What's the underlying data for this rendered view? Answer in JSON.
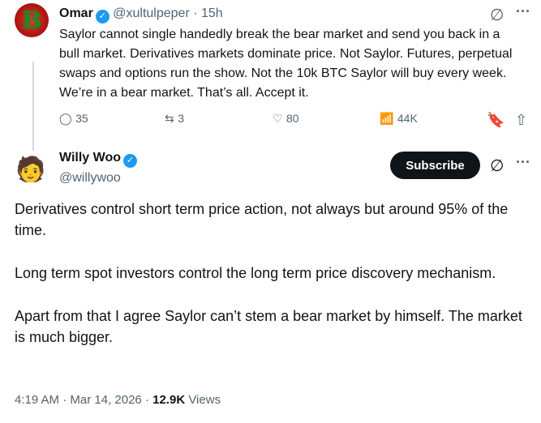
{
  "reply_to": {
    "name": "Omar",
    "handle": "@xultulpeper",
    "time": "15h",
    "avatar_letter": "B",
    "text": "Saylor cannot single handedly break the bear market and send you back in a bull market. Derivatives markets dominate price. Not Saylor. Futures, perpetual swaps and options run the show. Not the 10k BTC Saylor will buy every week. We’re in a bear market. That’s all. Accept it.",
    "replies": "35",
    "reposts": "3",
    "likes": "80",
    "views": "44K"
  },
  "tweet": {
    "name": "Willy Woo",
    "handle": "@willywoo",
    "subscribe_label": "Subscribe",
    "paragraphs": [
      "Derivatives control short term price action, not always but around 95% of the time.",
      "Long term spot investors control the long term price discovery mechanism.",
      "Apart from that I agree Saylor can’t stem a bear market by himself. The market is much bigger."
    ],
    "time": "4:19 AM",
    "date": "Mar 14, 2026",
    "views": "12.9K",
    "views_label": "Views"
  },
  "colors": {
    "verified": "#1d9bf0",
    "text": "#0f1419",
    "muted": "#536471"
  }
}
